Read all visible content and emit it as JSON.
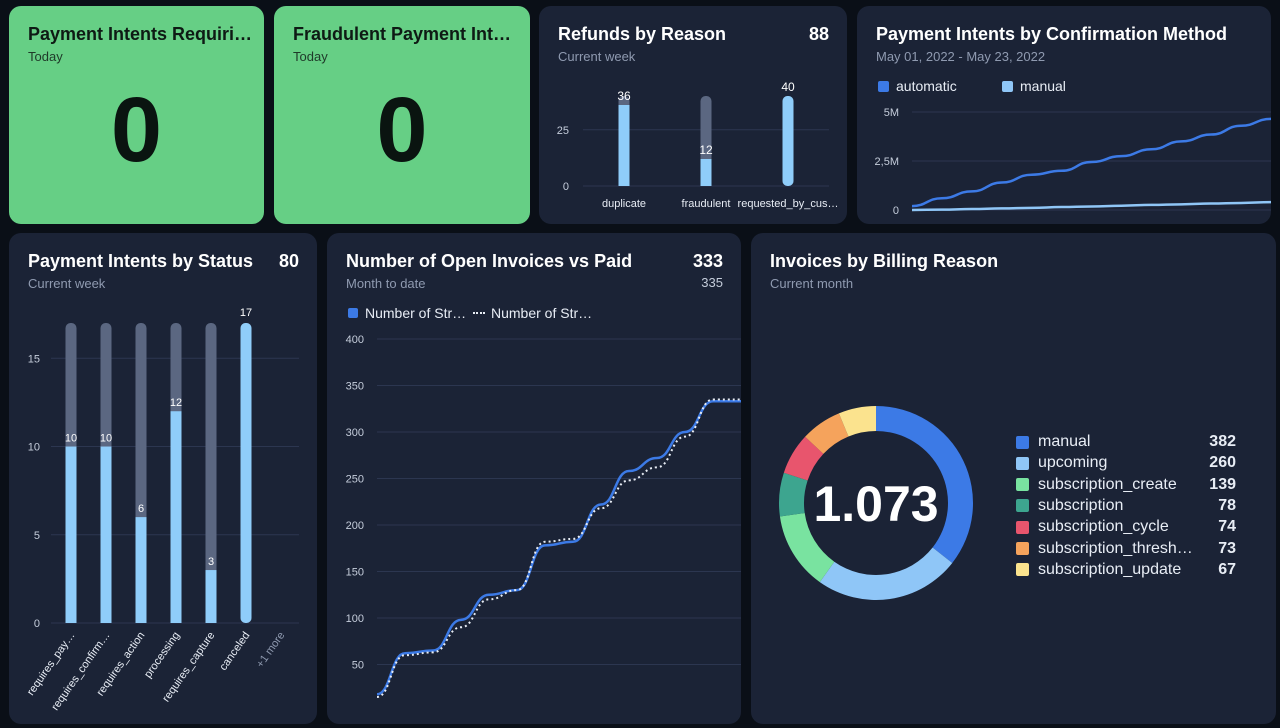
{
  "cards": {
    "requires_action": {
      "title": "Payment Intents Requiri…",
      "subtitle": "Today",
      "value": "0"
    },
    "fraudulent": {
      "title": "Fraudulent Payment Inte…",
      "subtitle": "Today",
      "value": "0"
    },
    "refunds": {
      "title": "Refunds by Reason",
      "subtitle": "Current week",
      "total": "88"
    },
    "confirmation": {
      "title": "Payment Intents by Confirmation Method",
      "subtitle": "May 01, 2022 - May 23, 2022"
    },
    "status": {
      "title": "Payment Intents by Status",
      "subtitle": "Current week",
      "total": "80"
    },
    "invoices": {
      "title": "Number of Open Invoices vs Paid",
      "subtitle": "Month to date",
      "total": "333",
      "total2": "335"
    },
    "billing": {
      "title": "Invoices by Billing Reason",
      "subtitle": "Current month"
    }
  },
  "colors": {
    "card_bg": "#1b2336",
    "green": "#66cf85",
    "bar_light": "#8fcdfa",
    "bar_bg": "#5b6781",
    "blue": "#3c7ae6",
    "light_blue": "#8fc6f7"
  },
  "chart_data": [
    {
      "id": "refunds",
      "type": "bar",
      "title": "Refunds by Reason",
      "categories": [
        "duplicate",
        "fraudulent",
        "requested_by_cus…"
      ],
      "values": [
        36,
        12,
        40
      ],
      "background_max": 40,
      "ylim": [
        0,
        40
      ],
      "yticks": [
        0,
        25
      ]
    },
    {
      "id": "confirmation",
      "type": "line",
      "title": "Payment Intents by Confirmation Method",
      "series": [
        {
          "name": "automatic",
          "color": "#3c7ae6",
          "values": [
            0.2,
            0.6,
            0.95,
            1.4,
            1.8,
            2.0,
            2.45,
            2.75,
            3.1,
            3.5,
            3.85,
            4.3,
            4.65
          ]
        },
        {
          "name": "manual",
          "color": "#8fc6f7",
          "values": [
            0.0,
            0.02,
            0.05,
            0.08,
            0.11,
            0.15,
            0.18,
            0.22,
            0.26,
            0.29,
            0.33,
            0.36,
            0.4
          ]
        }
      ],
      "ylim": [
        0,
        5
      ],
      "yticks": [
        {
          "v": 0,
          "label": "0"
        },
        {
          "v": 2.5,
          "label": "2,5M"
        },
        {
          "v": 5,
          "label": "5M"
        }
      ]
    },
    {
      "id": "status",
      "type": "bar",
      "title": "Payment Intents by Status",
      "categories": [
        "requires_pay…",
        "requires_confirm…",
        "requires_action",
        "processing",
        "requires_capture",
        "canceled"
      ],
      "values": [
        10,
        10,
        6,
        12,
        3,
        17
      ],
      "background_max": 17,
      "extra_label": "+1 more",
      "ylim": [
        0,
        17
      ],
      "yticks": [
        0,
        5,
        10,
        15
      ]
    },
    {
      "id": "invoices",
      "type": "line",
      "title": "Number of Open Invoices vs Paid",
      "legend": [
        "Number of Str…",
        "Number of Str…"
      ],
      "series": [
        {
          "name": "Number of Str… (solid)",
          "style": "solid",
          "values": [
            18,
            62,
            65,
            98,
            125,
            130,
            178,
            182,
            222,
            258,
            272,
            300,
            333,
            333
          ]
        },
        {
          "name": "Number of Str… (dotted)",
          "style": "dotted",
          "values": [
            15,
            60,
            63,
            90,
            120,
            130,
            182,
            185,
            218,
            248,
            262,
            295,
            335,
            335
          ]
        }
      ],
      "ylim": [
        15,
        400
      ],
      "yticks": [
        50,
        100,
        150,
        200,
        250,
        300,
        350,
        400
      ]
    },
    {
      "id": "billing",
      "type": "pie",
      "title": "Invoices by Billing Reason",
      "center_label": "1.073",
      "slices": [
        {
          "label": "manual",
          "value": 382,
          "color": "#3c7ae6"
        },
        {
          "label": "upcoming",
          "value": 260,
          "color": "#8fc6f7"
        },
        {
          "label": "subscription_create",
          "value": 139,
          "color": "#79e3a0"
        },
        {
          "label": "subscription",
          "value": 78,
          "color": "#3da58f"
        },
        {
          "label": "subscription_cycle",
          "value": 74,
          "color": "#e8556d"
        },
        {
          "label": "subscription_thresh…",
          "value": 73,
          "color": "#f5a35c"
        },
        {
          "label": "subscription_update",
          "value": 67,
          "color": "#fbe38e"
        }
      ]
    }
  ]
}
